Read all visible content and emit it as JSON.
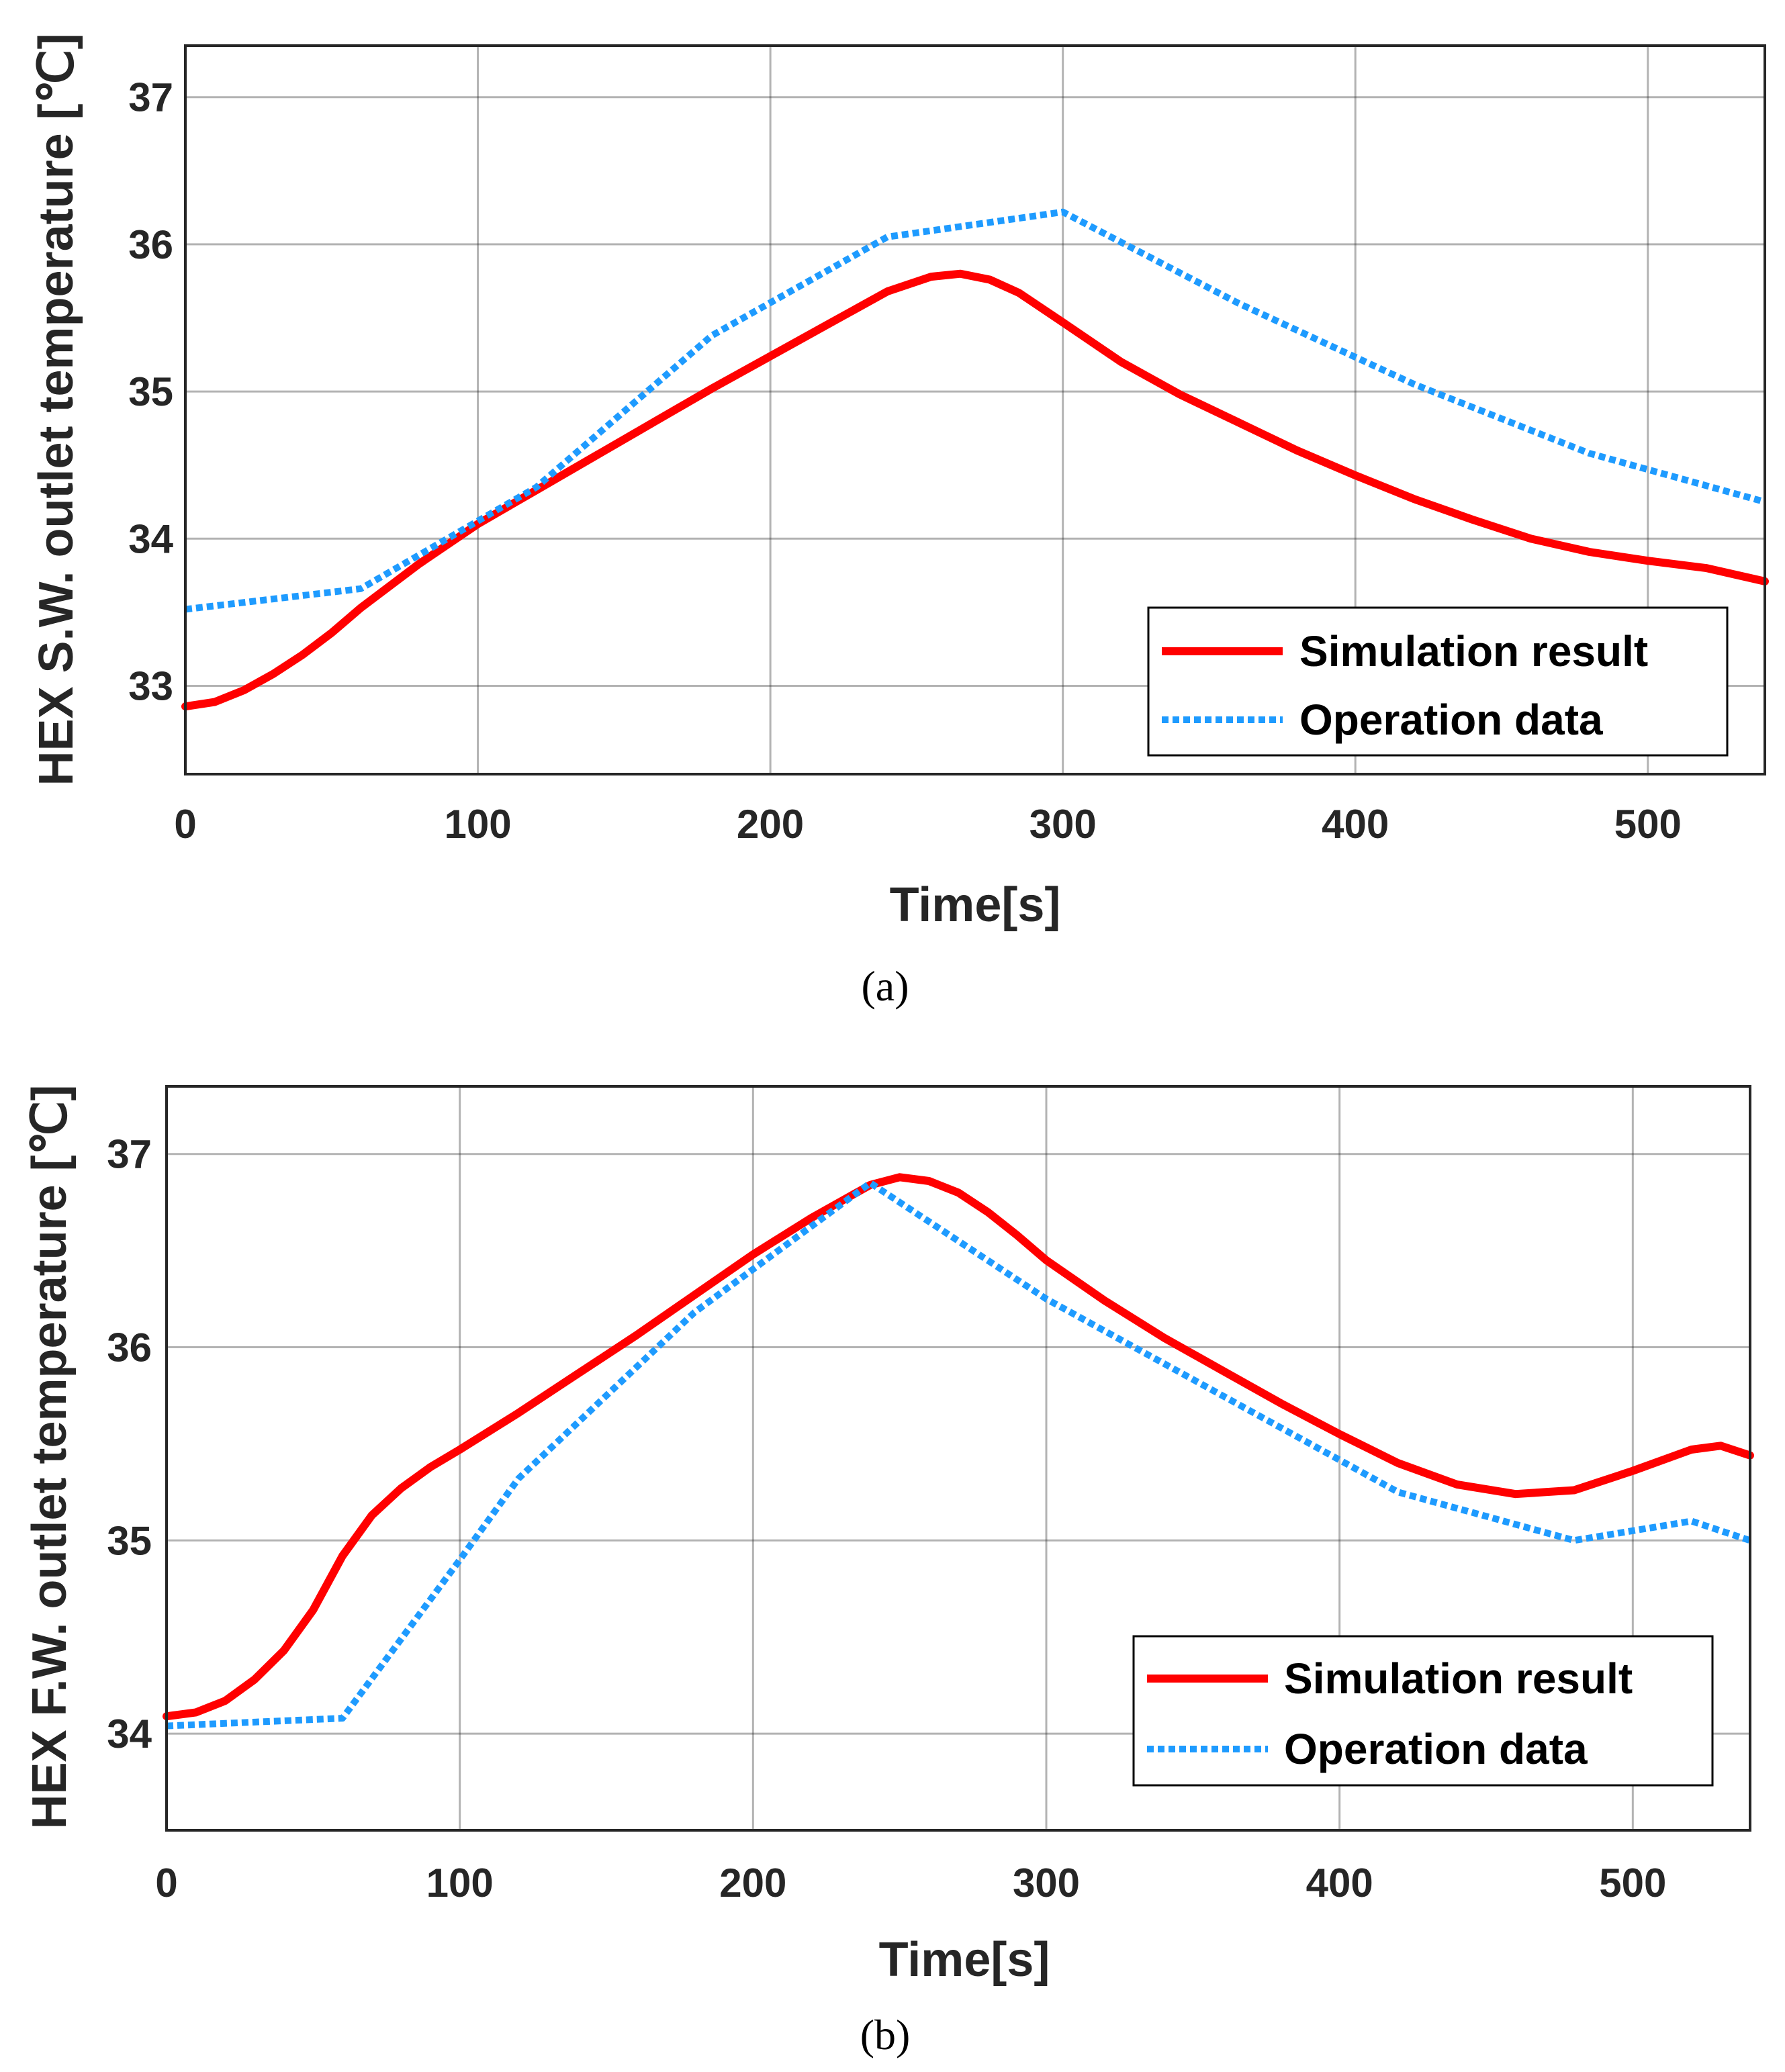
{
  "chart_data": [
    {
      "type": "line",
      "caption": "(a)",
      "xlabel": "Time[s]",
      "ylabel": "HEX S.W. outlet temperature [℃]",
      "xlim": [
        0,
        540
      ],
      "ylim": [
        32.4,
        37.35
      ],
      "xticks": [
        0,
        100,
        200,
        300,
        400,
        500
      ],
      "yticks": [
        33,
        34,
        35,
        36,
        37
      ],
      "grid": true,
      "legend_position": "bottom-right",
      "series": [
        {
          "name": "Simulation result",
          "color": "#ff0000",
          "style": "solid",
          "x": [
            0,
            10,
            20,
            30,
            40,
            50,
            60,
            80,
            100,
            120,
            140,
            160,
            180,
            200,
            220,
            240,
            255,
            265,
            275,
            285,
            300,
            320,
            340,
            360,
            380,
            400,
            420,
            440,
            460,
            480,
            500,
            520,
            540
          ],
          "y": [
            32.86,
            32.89,
            32.97,
            33.08,
            33.21,
            33.36,
            33.53,
            33.83,
            34.1,
            34.33,
            34.56,
            34.79,
            35.02,
            35.24,
            35.46,
            35.68,
            35.78,
            35.8,
            35.76,
            35.67,
            35.47,
            35.2,
            34.98,
            34.79,
            34.6,
            34.43,
            34.27,
            34.13,
            34.0,
            33.91,
            33.85,
            33.8,
            33.71
          ]
        },
        {
          "name": "Operation data",
          "color": "#1e9bff",
          "style": "dotted",
          "x": [
            0,
            60,
            120,
            180,
            240,
            300,
            360,
            420,
            480,
            540
          ],
          "y": [
            33.52,
            33.66,
            34.35,
            35.38,
            36.05,
            36.22,
            35.6,
            35.05,
            34.58,
            34.25
          ]
        }
      ]
    },
    {
      "type": "line",
      "caption": "(b)",
      "xlabel": "Time[s]",
      "ylabel": "HEX F.W. outlet temperature [℃]",
      "xlim": [
        0,
        540
      ],
      "ylim": [
        33.5,
        37.35
      ],
      "xticks": [
        0,
        100,
        200,
        300,
        400,
        500
      ],
      "yticks": [
        34,
        35,
        36,
        37
      ],
      "grid": true,
      "legend_position": "bottom-right",
      "series": [
        {
          "name": "Simulation result",
          "color": "#ff0000",
          "style": "solid",
          "x": [
            0,
            10,
            20,
            30,
            40,
            50,
            60,
            70,
            80,
            90,
            100,
            120,
            140,
            160,
            180,
            200,
            220,
            240,
            250,
            260,
            270,
            280,
            290,
            300,
            320,
            340,
            360,
            380,
            400,
            420,
            440,
            460,
            480,
            500,
            520,
            530,
            540
          ],
          "y": [
            34.09,
            34.11,
            34.17,
            34.28,
            34.43,
            34.64,
            34.92,
            35.13,
            35.27,
            35.38,
            35.47,
            35.66,
            35.86,
            36.06,
            36.27,
            36.48,
            36.67,
            36.84,
            36.88,
            36.86,
            36.8,
            36.7,
            36.58,
            36.45,
            36.24,
            36.05,
            35.88,
            35.71,
            35.55,
            35.4,
            35.29,
            35.24,
            35.26,
            35.36,
            35.47,
            35.49,
            35.44
          ]
        },
        {
          "name": "Operation data",
          "color": "#1e9bff",
          "style": "dotted",
          "x": [
            0,
            60,
            100,
            120,
            180,
            240,
            300,
            360,
            420,
            480,
            520,
            540
          ],
          "y": [
            34.04,
            34.08,
            34.9,
            35.32,
            36.18,
            36.85,
            36.25,
            35.75,
            35.25,
            35.0,
            35.1,
            35.0
          ]
        }
      ]
    }
  ]
}
